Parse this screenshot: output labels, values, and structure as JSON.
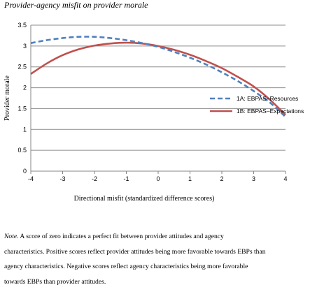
{
  "figure_title": "Provider-agency misfit on provider morale",
  "note": {
    "prefix": "Note.",
    "line1": " A score of zero indicates a perfect fit between provider attitudes and agency",
    "line2": "characteristics. Positive scores reflect provider attitudes being more favorable towards EBPs than",
    "line3": "agency characteristics. Negative scores reflect agency characteristics being more favorable",
    "line4": "towards EBPs than provider attitudes."
  },
  "colors": {
    "resources": "#4f81bd",
    "expectations": "#c0504d",
    "grid": "#8c8c8c",
    "axis": "#868686"
  },
  "chart_data": {
    "type": "line",
    "title": "Provider-agency misfit on provider morale",
    "xlabel": "Directional misfit (standardized difference scores)",
    "ylabel": "Provider morale",
    "xlim": [
      -4,
      4
    ],
    "ylim": [
      0,
      3.5
    ],
    "xticks": [
      "-4",
      "-3",
      "-2",
      "-1",
      "0",
      "1",
      "2",
      "3",
      "4"
    ],
    "yticks": [
      "0",
      "0.5",
      "1",
      "1.5",
      "2",
      "2.5",
      "3",
      "3.5"
    ],
    "grid": "horizontal",
    "legend_position": "right",
    "x": [
      -4,
      -3.5,
      -3,
      -2.5,
      -2,
      -1.5,
      -1,
      -0.5,
      0,
      0.5,
      1,
      1.5,
      2,
      2.5,
      3,
      3.5,
      4
    ],
    "series": [
      {
        "name": "1A: EBPAS–Resources",
        "style": "dashed",
        "values": [
          3.07,
          3.14,
          3.19,
          3.22,
          3.22,
          3.19,
          3.14,
          3.07,
          2.98,
          2.86,
          2.72,
          2.56,
          2.37,
          2.16,
          1.92,
          1.65,
          1.3
        ]
      },
      {
        "name": "1B: EBPAS–Expectations",
        "style": "solid",
        "values": [
          2.33,
          2.58,
          2.78,
          2.92,
          3.01,
          3.06,
          3.08,
          3.06,
          3.0,
          2.91,
          2.79,
          2.64,
          2.47,
          2.26,
          2.03,
          1.72,
          1.35
        ]
      }
    ]
  }
}
